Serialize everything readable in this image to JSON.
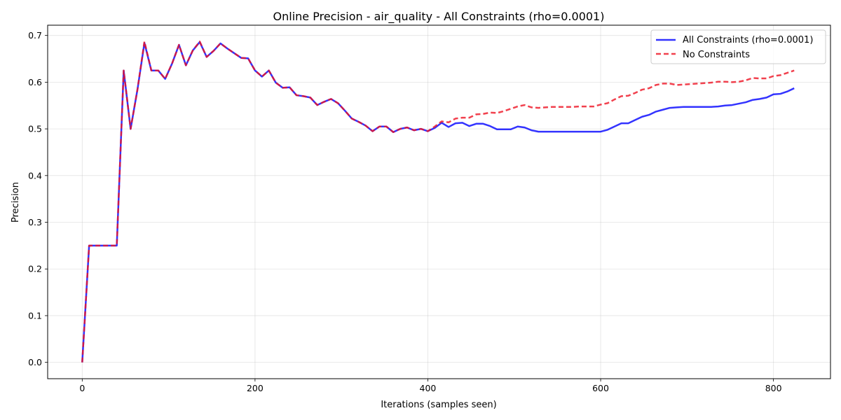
{
  "chart_data": {
    "type": "line",
    "title": "Online Precision - air_quality - All Constraints (rho=0.0001)",
    "xlabel": "Iterations (samples seen)",
    "ylabel": "Precision",
    "xlim": [
      -40,
      866
    ],
    "ylim": [
      -0.035,
      0.722
    ],
    "xticks": [
      0,
      200,
      400,
      600,
      800
    ],
    "yticks": [
      0.0,
      0.1,
      0.2,
      0.3,
      0.4,
      0.5,
      0.6,
      0.7
    ],
    "xtick_labels": [
      "0",
      "200",
      "400",
      "600",
      "800"
    ],
    "ytick_labels": [
      "0.0",
      "0.1",
      "0.2",
      "0.3",
      "0.4",
      "0.5",
      "0.6",
      "0.7"
    ],
    "grid": true,
    "legend_position": "top-right",
    "series": [
      {
        "name": "All Constraints (rho=0.0001)",
        "color": "#0000ff",
        "style": "solid",
        "points": [
          [
            0,
            0.0
          ],
          [
            8,
            0.25
          ],
          [
            16,
            0.25
          ],
          [
            24,
            0.25
          ],
          [
            32,
            0.25
          ],
          [
            40,
            0.25
          ],
          [
            48,
            0.625
          ],
          [
            56,
            0.5
          ],
          [
            64,
            0.585
          ],
          [
            72,
            0.684
          ],
          [
            80,
            0.625
          ],
          [
            88,
            0.625
          ],
          [
            96,
            0.607
          ],
          [
            104,
            0.64
          ],
          [
            112,
            0.68
          ],
          [
            120,
            0.636
          ],
          [
            128,
            0.668
          ],
          [
            136,
            0.686
          ],
          [
            144,
            0.654
          ],
          [
            152,
            0.667
          ],
          [
            160,
            0.683
          ],
          [
            168,
            0.672
          ],
          [
            176,
            0.662
          ],
          [
            184,
            0.652
          ],
          [
            192,
            0.651
          ],
          [
            200,
            0.625
          ],
          [
            208,
            0.612
          ],
          [
            216,
            0.625
          ],
          [
            224,
            0.599
          ],
          [
            232,
            0.588
          ],
          [
            240,
            0.589
          ],
          [
            248,
            0.572
          ],
          [
            256,
            0.57
          ],
          [
            264,
            0.567
          ],
          [
            272,
            0.551
          ],
          [
            280,
            0.558
          ],
          [
            288,
            0.564
          ],
          [
            296,
            0.555
          ],
          [
            304,
            0.539
          ],
          [
            312,
            0.522
          ],
          [
            320,
            0.515
          ],
          [
            328,
            0.507
          ],
          [
            336,
            0.495
          ],
          [
            344,
            0.505
          ],
          [
            352,
            0.505
          ],
          [
            360,
            0.493
          ],
          [
            368,
            0.5
          ],
          [
            376,
            0.503
          ],
          [
            384,
            0.497
          ],
          [
            392,
            0.5
          ],
          [
            400,
            0.495
          ],
          [
            408,
            0.502
          ],
          [
            416,
            0.513
          ],
          [
            424,
            0.504
          ],
          [
            432,
            0.512
          ],
          [
            440,
            0.513
          ],
          [
            448,
            0.506
          ],
          [
            456,
            0.511
          ],
          [
            464,
            0.511
          ],
          [
            472,
            0.506
          ],
          [
            480,
            0.499
          ],
          [
            488,
            0.499
          ],
          [
            496,
            0.499
          ],
          [
            504,
            0.505
          ],
          [
            512,
            0.503
          ],
          [
            520,
            0.497
          ],
          [
            528,
            0.494
          ],
          [
            536,
            0.494
          ],
          [
            544,
            0.494
          ],
          [
            552,
            0.494
          ],
          [
            560,
            0.494
          ],
          [
            568,
            0.494
          ],
          [
            576,
            0.494
          ],
          [
            584,
            0.494
          ],
          [
            592,
            0.494
          ],
          [
            600,
            0.494
          ],
          [
            608,
            0.498
          ],
          [
            616,
            0.505
          ],
          [
            624,
            0.512
          ],
          [
            632,
            0.512
          ],
          [
            640,
            0.519
          ],
          [
            648,
            0.526
          ],
          [
            656,
            0.53
          ],
          [
            664,
            0.537
          ],
          [
            672,
            0.541
          ],
          [
            680,
            0.545
          ],
          [
            688,
            0.546
          ],
          [
            696,
            0.547
          ],
          [
            704,
            0.547
          ],
          [
            712,
            0.547
          ],
          [
            720,
            0.547
          ],
          [
            728,
            0.547
          ],
          [
            736,
            0.548
          ],
          [
            744,
            0.55
          ],
          [
            752,
            0.551
          ],
          [
            760,
            0.554
          ],
          [
            768,
            0.557
          ],
          [
            776,
            0.562
          ],
          [
            784,
            0.564
          ],
          [
            792,
            0.567
          ],
          [
            800,
            0.574
          ],
          [
            808,
            0.575
          ],
          [
            816,
            0.58
          ],
          [
            824,
            0.587
          ]
        ]
      },
      {
        "name": "No Constraints",
        "color": "#ee1122",
        "style": "dashed",
        "points": [
          [
            0,
            0.0
          ],
          [
            8,
            0.25
          ],
          [
            16,
            0.25
          ],
          [
            24,
            0.25
          ],
          [
            32,
            0.25
          ],
          [
            40,
            0.25
          ],
          [
            48,
            0.625
          ],
          [
            56,
            0.5
          ],
          [
            64,
            0.585
          ],
          [
            72,
            0.687
          ],
          [
            80,
            0.625
          ],
          [
            88,
            0.625
          ],
          [
            96,
            0.607
          ],
          [
            104,
            0.64
          ],
          [
            112,
            0.68
          ],
          [
            120,
            0.636
          ],
          [
            128,
            0.668
          ],
          [
            136,
            0.687
          ],
          [
            144,
            0.654
          ],
          [
            152,
            0.667
          ],
          [
            160,
            0.683
          ],
          [
            168,
            0.672
          ],
          [
            176,
            0.662
          ],
          [
            184,
            0.652
          ],
          [
            192,
            0.651
          ],
          [
            200,
            0.625
          ],
          [
            208,
            0.612
          ],
          [
            216,
            0.625
          ],
          [
            224,
            0.599
          ],
          [
            232,
            0.588
          ],
          [
            240,
            0.589
          ],
          [
            248,
            0.572
          ],
          [
            256,
            0.57
          ],
          [
            264,
            0.567
          ],
          [
            272,
            0.551
          ],
          [
            280,
            0.558
          ],
          [
            288,
            0.564
          ],
          [
            296,
            0.555
          ],
          [
            304,
            0.539
          ],
          [
            312,
            0.522
          ],
          [
            320,
            0.515
          ],
          [
            328,
            0.507
          ],
          [
            336,
            0.495
          ],
          [
            344,
            0.505
          ],
          [
            352,
            0.505
          ],
          [
            360,
            0.493
          ],
          [
            368,
            0.5
          ],
          [
            376,
            0.503
          ],
          [
            384,
            0.497
          ],
          [
            392,
            0.5
          ],
          [
            400,
            0.495
          ],
          [
            408,
            0.505
          ],
          [
            416,
            0.516
          ],
          [
            424,
            0.514
          ],
          [
            432,
            0.522
          ],
          [
            440,
            0.524
          ],
          [
            448,
            0.524
          ],
          [
            456,
            0.531
          ],
          [
            464,
            0.532
          ],
          [
            472,
            0.535
          ],
          [
            480,
            0.534
          ],
          [
            488,
            0.538
          ],
          [
            496,
            0.543
          ],
          [
            504,
            0.548
          ],
          [
            512,
            0.551
          ],
          [
            520,
            0.546
          ],
          [
            528,
            0.545
          ],
          [
            536,
            0.546
          ],
          [
            544,
            0.547
          ],
          [
            552,
            0.547
          ],
          [
            560,
            0.547
          ],
          [
            568,
            0.547
          ],
          [
            576,
            0.548
          ],
          [
            584,
            0.548
          ],
          [
            592,
            0.548
          ],
          [
            600,
            0.552
          ],
          [
            608,
            0.555
          ],
          [
            616,
            0.563
          ],
          [
            624,
            0.57
          ],
          [
            632,
            0.571
          ],
          [
            640,
            0.577
          ],
          [
            648,
            0.584
          ],
          [
            656,
            0.587
          ],
          [
            664,
            0.594
          ],
          [
            672,
            0.597
          ],
          [
            680,
            0.597
          ],
          [
            688,
            0.594
          ],
          [
            696,
            0.595
          ],
          [
            704,
            0.596
          ],
          [
            712,
            0.597
          ],
          [
            720,
            0.598
          ],
          [
            728,
            0.599
          ],
          [
            736,
            0.601
          ],
          [
            744,
            0.601
          ],
          [
            752,
            0.6
          ],
          [
            760,
            0.601
          ],
          [
            768,
            0.604
          ],
          [
            776,
            0.609
          ],
          [
            784,
            0.608
          ],
          [
            792,
            0.608
          ],
          [
            800,
            0.613
          ],
          [
            808,
            0.615
          ],
          [
            816,
            0.62
          ],
          [
            824,
            0.625
          ]
        ]
      }
    ]
  }
}
